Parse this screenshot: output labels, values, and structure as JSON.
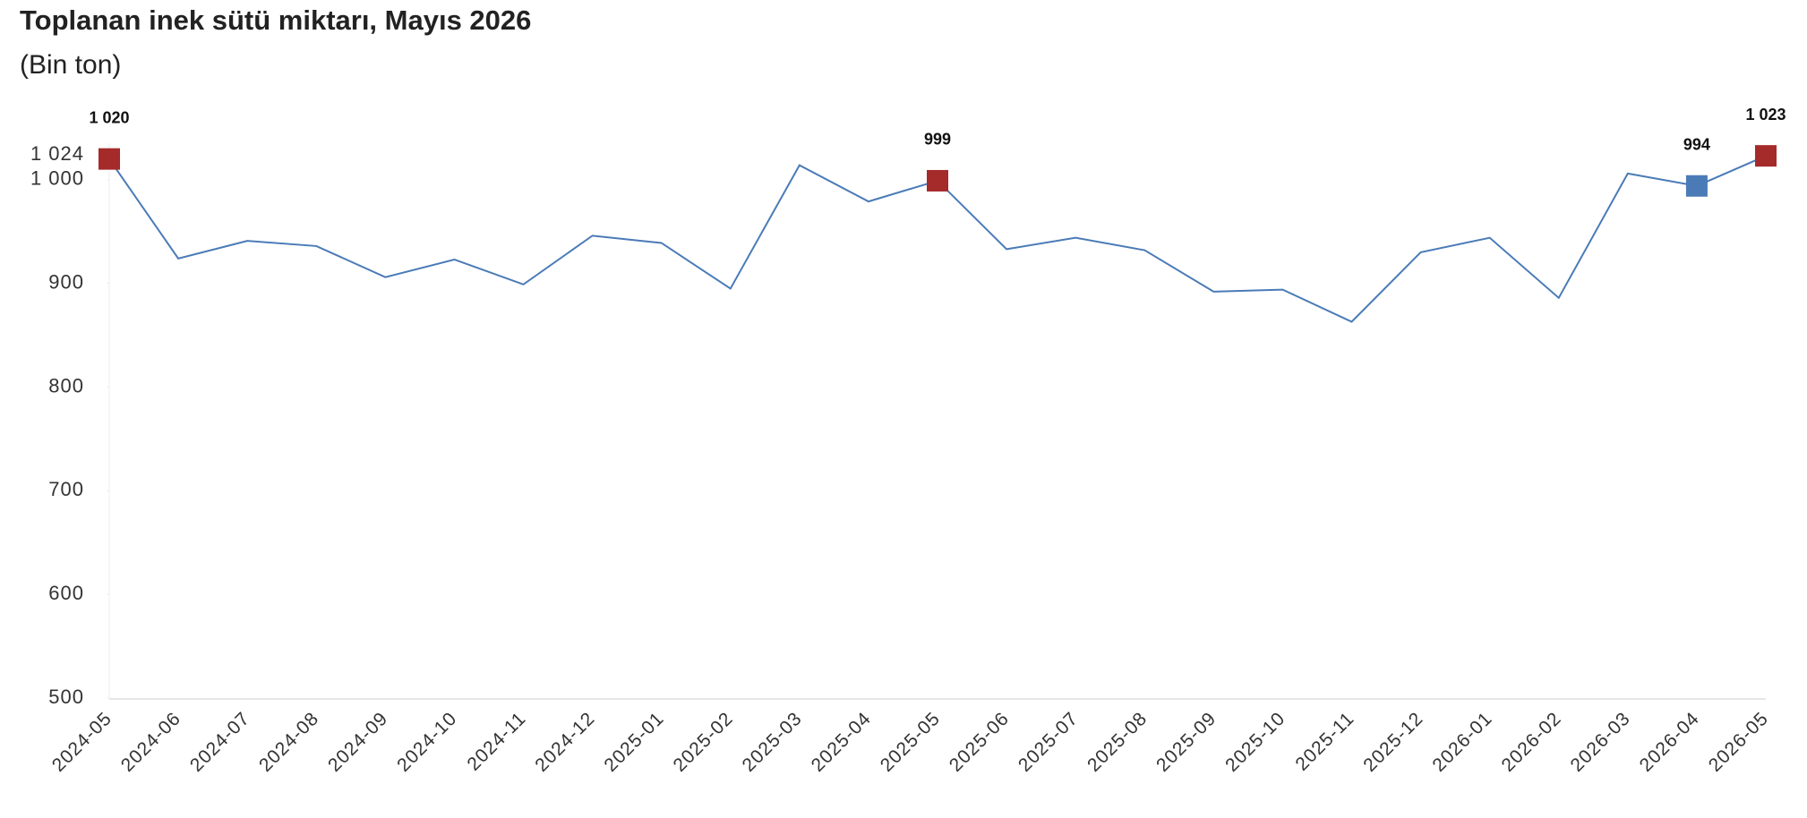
{
  "chart_data": {
    "type": "line",
    "title": "Toplanan inek sütü miktarı, Mayıs 2026",
    "subtitle": "(Bin ton)",
    "categories": [
      "2024-05",
      "2024-06",
      "2024-07",
      "2024-08",
      "2024-09",
      "2024-10",
      "2024-11",
      "2024-12",
      "2025-01",
      "2025-02",
      "2025-03",
      "2025-04",
      "2025-05",
      "2025-06",
      "2025-07",
      "2025-08",
      "2025-09",
      "2025-10",
      "2025-11",
      "2025-12",
      "2026-01",
      "2026-02",
      "2026-03",
      "2026-04",
      "2026-05"
    ],
    "series": [
      {
        "color": "#4a7bb7",
        "values": [
          1020,
          924,
          941,
          936,
          906,
          923,
          899,
          946,
          939,
          895,
          1014,
          979,
          999,
          933,
          944,
          932,
          892,
          894,
          863,
          930,
          944,
          886,
          1006,
          994,
          1023
        ],
        "value_labels": [
          "1 020",
          null,
          null,
          null,
          null,
          null,
          null,
          null,
          null,
          null,
          null,
          null,
          "999",
          null,
          null,
          null,
          null,
          null,
          null,
          null,
          null,
          null,
          null,
          "994",
          "1 023"
        ],
        "marker_colors": [
          "#a52a2a",
          null,
          null,
          null,
          null,
          null,
          null,
          null,
          null,
          null,
          null,
          null,
          "#a52a2a",
          null,
          null,
          null,
          null,
          null,
          null,
          null,
          null,
          null,
          null,
          "#4a7bb7",
          "#a52a2a"
        ]
      }
    ],
    "ylim": [
      500,
      1024
    ],
    "yticks": [
      500,
      600,
      700,
      800,
      900,
      {
        "value": 1000,
        "label": "1 000"
      },
      {
        "value": 1024,
        "label": "1 024"
      }
    ],
    "grid": false
  }
}
